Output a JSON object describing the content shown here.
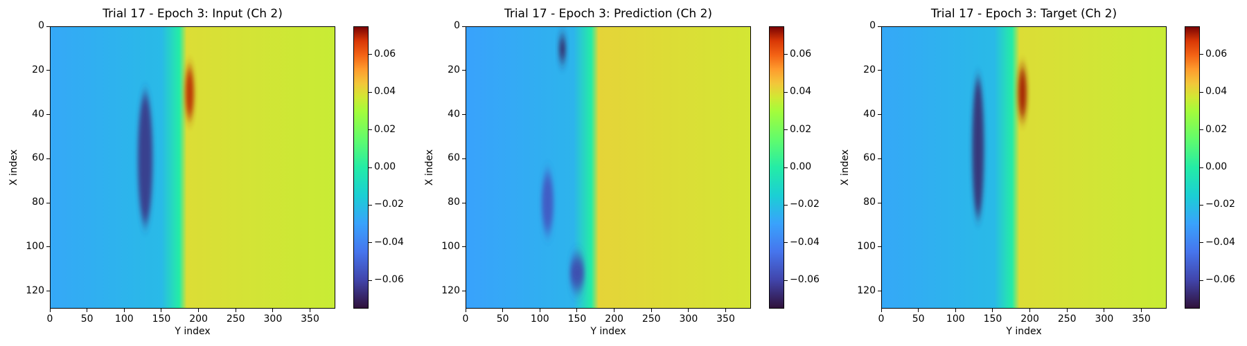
{
  "chart_data": [
    {
      "type": "heatmap",
      "title": "Trial 17 - Epoch 3: Input (Ch 2)",
      "xlabel": "Y index",
      "ylabel": "X index",
      "xlim": [
        0,
        384
      ],
      "ylim": [
        128,
        0
      ],
      "xticks": [
        0,
        50,
        100,
        150,
        200,
        250,
        300,
        350
      ],
      "yticks": [
        0,
        20,
        40,
        60,
        80,
        100,
        120
      ],
      "colorbar": {
        "range": [
          -0.075,
          0.075
        ],
        "ticks": [
          -0.06,
          -0.04,
          -0.02,
          0.0,
          0.02,
          0.04,
          0.06
        ],
        "tick_labels": [
          "−0.06",
          "−0.04",
          "−0.02",
          "0.00",
          "0.02",
          "0.04",
          "0.06"
        ],
        "colormap": "turbo"
      },
      "field": {
        "shock_y": 180,
        "left_value": -0.028,
        "right_value": 0.036,
        "features": [
          {
            "kind": "low",
            "y": 128,
            "x": 60,
            "ry": 10,
            "rx": 30,
            "value": -0.065
          },
          {
            "kind": "high",
            "y": 188,
            "x": 30,
            "ry": 6,
            "rx": 12,
            "value": 0.07
          }
        ]
      }
    },
    {
      "type": "heatmap",
      "title": "Trial 17 - Epoch 3: Prediction (Ch 2)",
      "xlabel": "Y index",
      "ylabel": "X index",
      "xlim": [
        0,
        384
      ],
      "ylim": [
        128,
        0
      ],
      "xticks": [
        0,
        50,
        100,
        150,
        200,
        250,
        300,
        350
      ],
      "yticks": [
        0,
        20,
        40,
        60,
        80,
        100,
        120
      ],
      "colorbar": {
        "range": [
          -0.075,
          0.075
        ],
        "ticks": [
          -0.06,
          -0.04,
          -0.02,
          0.0,
          0.02,
          0.04,
          0.06
        ],
        "tick_labels": [
          "−0.06",
          "−0.04",
          "−0.02",
          "0.00",
          "0.02",
          "0.04",
          "0.06"
        ],
        "colormap": "turbo"
      },
      "field": {
        "shock_y": 175,
        "left_value": -0.03,
        "right_value": 0.038,
        "features": [
          {
            "kind": "low",
            "y": 130,
            "x": 10,
            "ry": 5,
            "rx": 6,
            "value": -0.07
          },
          {
            "kind": "low",
            "y": 110,
            "x": 80,
            "ry": 8,
            "rx": 14,
            "value": -0.055
          },
          {
            "kind": "low",
            "y": 150,
            "x": 112,
            "ry": 10,
            "rx": 8,
            "value": -0.06
          }
        ]
      }
    },
    {
      "type": "heatmap",
      "title": "Trial 17 - Epoch 3: Target (Ch 2)",
      "xlabel": "Y index",
      "ylabel": "X index",
      "xlim": [
        0,
        384
      ],
      "ylim": [
        128,
        0
      ],
      "xticks": [
        0,
        50,
        100,
        150,
        200,
        250,
        300,
        350
      ],
      "yticks": [
        0,
        20,
        40,
        60,
        80,
        100,
        120
      ],
      "colorbar": {
        "range": [
          -0.075,
          0.075
        ],
        "ticks": [
          -0.06,
          -0.04,
          -0.02,
          0.0,
          0.02,
          0.04,
          0.06
        ],
        "tick_labels": [
          "−0.06",
          "−0.04",
          "−0.02",
          "0.00",
          "0.02",
          "0.04",
          "0.06"
        ],
        "colormap": "turbo"
      },
      "field": {
        "shock_y": 182,
        "left_value": -0.028,
        "right_value": 0.036,
        "features": [
          {
            "kind": "low",
            "y": 130,
            "x": 55,
            "ry": 8,
            "rx": 32,
            "value": -0.068
          },
          {
            "kind": "high",
            "y": 190,
            "x": 30,
            "ry": 6,
            "rx": 12,
            "value": 0.072
          }
        ]
      }
    }
  ]
}
